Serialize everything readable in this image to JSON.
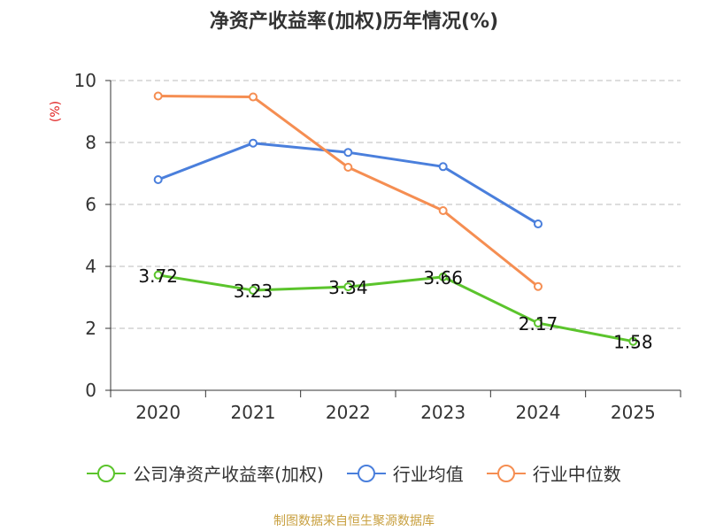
{
  "chart_data": {
    "type": "line",
    "title": "净资产收益率(加权)历年情况(%)",
    "ylabel": "(%)",
    "xlabel": "",
    "categories": [
      "2020",
      "2021",
      "2022",
      "2023",
      "2024",
      "2025"
    ],
    "ylim": [
      0,
      10
    ],
    "yticks": [
      0,
      2,
      4,
      6,
      8,
      10
    ],
    "grid": true,
    "legend_position": "bottom",
    "series": [
      {
        "name": "公司净资产收益率(加权)",
        "color": "#5bc42c",
        "values": [
          3.72,
          3.23,
          3.34,
          3.66,
          2.17,
          1.58
        ],
        "labels": [
          "3.72",
          "3.23",
          "3.34",
          "3.66",
          "2.17",
          "1.58"
        ]
      },
      {
        "name": "行业均值",
        "color": "#4a7fdc",
        "values": [
          6.8,
          7.98,
          7.68,
          7.22,
          5.37,
          null
        ]
      },
      {
        "name": "行业中位数",
        "color": "#f58e52",
        "values": [
          9.5,
          9.47,
          7.2,
          5.8,
          3.35,
          null
        ]
      }
    ]
  },
  "source": "制图数据来自恒生聚源数据库"
}
